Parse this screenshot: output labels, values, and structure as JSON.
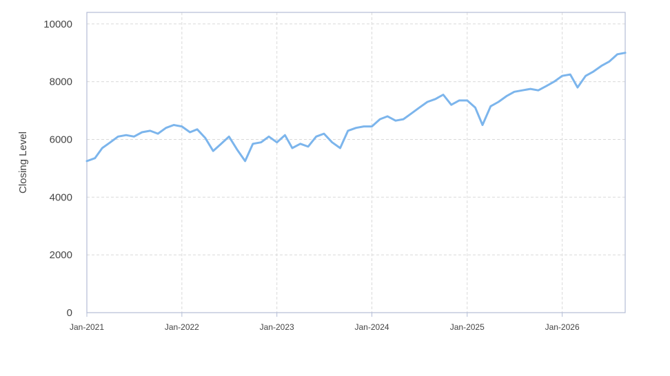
{
  "chart_data": {
    "type": "line",
    "title": "",
    "xlabel": "",
    "ylabel": "Closing Level",
    "xlim": [
      "2021-01-01",
      "2026-08-31"
    ],
    "ylim": [
      0,
      10400
    ],
    "yticks": [
      0,
      2000,
      4000,
      6000,
      8000,
      10000
    ],
    "xticks": [
      {
        "date": "2021-01-01",
        "label": "Jan-2021"
      },
      {
        "date": "2022-01-01",
        "label": "Jan-2022"
      },
      {
        "date": "2023-01-01",
        "label": "Jan-2023"
      },
      {
        "date": "2024-01-01",
        "label": "Jan-2024"
      },
      {
        "date": "2025-01-01",
        "label": "Jan-2025"
      },
      {
        "date": "2026-01-01",
        "label": "Jan-2026"
      }
    ],
    "grid": true,
    "line_color": "#7cb5ec",
    "series": [
      {
        "x": [
          "2021-01-01",
          "2021-02-01",
          "2021-03-01",
          "2021-04-01",
          "2021-05-01",
          "2021-06-01",
          "2021-07-01",
          "2021-08-01",
          "2021-09-01",
          "2021-10-01",
          "2021-11-01",
          "2021-12-01",
          "2022-01-01",
          "2022-02-01",
          "2022-03-01",
          "2022-04-01",
          "2022-05-01",
          "2022-06-01",
          "2022-07-01",
          "2022-08-01",
          "2022-09-01",
          "2022-10-01",
          "2022-11-01",
          "2022-12-01",
          "2023-01-01",
          "2023-02-01",
          "2023-03-01",
          "2023-04-01",
          "2023-05-01",
          "2023-06-01",
          "2023-07-01",
          "2023-08-01",
          "2023-09-01",
          "2023-10-01",
          "2023-11-01",
          "2023-12-01",
          "2024-01-01",
          "2024-02-01",
          "2024-03-01",
          "2024-04-01",
          "2024-05-01",
          "2024-06-01",
          "2024-07-01",
          "2024-08-01",
          "2024-09-01",
          "2024-10-01",
          "2024-11-01",
          "2024-12-01",
          "2025-01-01",
          "2025-02-01",
          "2025-03-01",
          "2025-04-01",
          "2025-05-01",
          "2025-06-01",
          "2025-07-01",
          "2025-08-01",
          "2025-09-01",
          "2025-10-01",
          "2025-11-01",
          "2025-12-01",
          "2026-01-01",
          "2026-02-01",
          "2026-03-01",
          "2026-04-01",
          "2026-05-01",
          "2026-06-01",
          "2026-07-01",
          "2026-08-01",
          "2026-08-31"
        ],
        "values": [
          5250,
          5350,
          5700,
          5900,
          6100,
          6150,
          6100,
          6250,
          6300,
          6200,
          6400,
          6500,
          6450,
          6250,
          6350,
          6050,
          5600,
          5850,
          6100,
          5650,
          5250,
          5850,
          5900,
          6100,
          5900,
          6150,
          5700,
          5850,
          5750,
          6100,
          6200,
          5900,
          5700,
          6300,
          6400,
          6450,
          6450,
          6700,
          6800,
          6650,
          6700,
          6900,
          7100,
          7300,
          7400,
          7550,
          7200,
          7350,
          7350,
          7100,
          6500,
          7150,
          7300,
          7500,
          7650,
          7700,
          7750,
          7700,
          7850,
          8000,
          8200,
          8250,
          7800,
          8200,
          8350,
          8550,
          8700,
          8950,
          9000
        ]
      }
    ]
  }
}
